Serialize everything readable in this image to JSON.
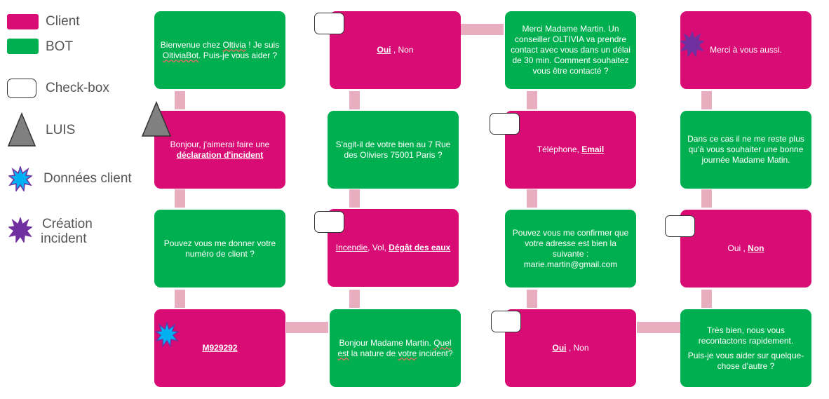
{
  "legend": {
    "client": "Client",
    "bot": "BOT",
    "checkbox": "Check-box",
    "luis": "LUIS",
    "donnees": "Données client",
    "creation_line1": "Création",
    "creation_line2": "incident"
  },
  "colors": {
    "client": "#d80c74",
    "bot": "#00b050",
    "connector": "#e8adbe",
    "donnees_star": "#00b0f0",
    "creation_star": "#7030a0",
    "luis": "#808080"
  },
  "col1": {
    "welcome": {
      "t1": "Bienvenue chez ",
      "oltivia": "Oltivia",
      "t2": " ! Je suis ",
      "bot": "OltiviaBot",
      "t3": ". Puis-je vous aider ?"
    },
    "incident": {
      "t1": "Bonjour, j'aimerai faire une ",
      "bold": "déclaration d'incident"
    },
    "ask_client": "Pouvez vous me donner votre numéro de client ?",
    "client_number": "M929292"
  },
  "col2": {
    "yes_no_1": {
      "oui": "Oui",
      "rest": " , Non"
    },
    "address_q": "S'agit-il de votre bien au 7 Rue des Oliviers 75001 Paris ?",
    "types": {
      "incendie": "Incendie",
      "sep": ", Vol, ",
      "degat": "Dégât des eaux"
    },
    "nature_q": {
      "t1": "Bonjour Madame Martin. ",
      "quel": "Quel",
      "t2": " ",
      "est": "est",
      "t3": " la nature de ",
      "votre": "votre",
      "t4": " incident?"
    }
  },
  "col3": {
    "merci": "Merci Madame Martin. Un conseiller OLTIVIA va prendre contact avec vous dans un délai de 30 min. Comment souhaitez vous être contacté ?",
    "contact": {
      "t1": "Téléphone, ",
      "email": "Email"
    },
    "confirm": "Pouvez vous me confirmer que votre adresse est bien la suivante : marie.martin@gmail.com",
    "yes_no_2": {
      "oui": "Oui",
      "rest": " , Non"
    }
  },
  "col4": {
    "merci_aussi": "Merci à vous aussi.",
    "bonne_journee": "Dans ce cas il ne me reste plus qu'à vous souhaiter une bonne journée Madame Matin.",
    "oui_non": {
      "oui": "Oui , ",
      "non": "Non"
    },
    "tres_bien": {
      "p1": "Très bien, nous vous recontactons rapidement.",
      "p2": "Puis-je vous aider sur quelque-chose d'autre ?"
    }
  }
}
